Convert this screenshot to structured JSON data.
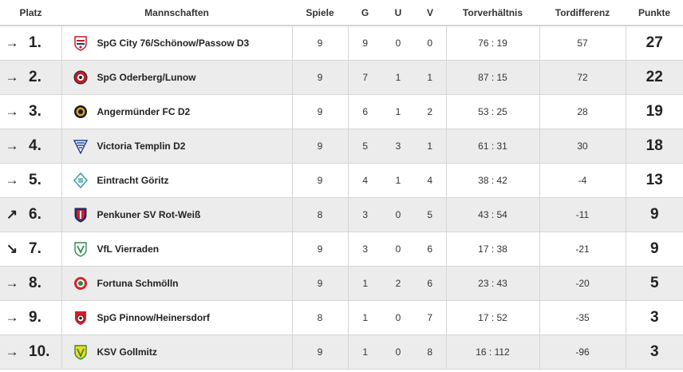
{
  "headers": {
    "place": "Platz",
    "teams": "Mannschaften",
    "games": "Spiele",
    "won": "G",
    "draw": "U",
    "lost": "V",
    "goals": "Torverhältnis",
    "diff": "Tordifferenz",
    "points": "Punkte"
  },
  "rows": [
    {
      "trend": "→",
      "rank": "1.",
      "team": "SpG City 76/Schönow/Passow D3",
      "crest": "shield-crest-red-white",
      "games": "9",
      "won": "9",
      "draw": "0",
      "lost": "0",
      "goals": "76 : 19",
      "diff": "57",
      "points": "27"
    },
    {
      "trend": "→",
      "rank": "2.",
      "team": "SpG Oderberg/Lunow",
      "crest": "round-crest-red-black",
      "games": "9",
      "won": "7",
      "draw": "1",
      "lost": "1",
      "goals": "87 : 15",
      "diff": "72",
      "points": "22"
    },
    {
      "trend": "→",
      "rank": "3.",
      "team": "Angermünder FC D2",
      "crest": "round-crest-black-gold",
      "games": "9",
      "won": "6",
      "draw": "1",
      "lost": "2",
      "goals": "53 : 25",
      "diff": "28",
      "points": "19"
    },
    {
      "trend": "→",
      "rank": "4.",
      "team": "Victoria Templin D2",
      "crest": "triangle-crest-blue-white",
      "games": "9",
      "won": "5",
      "draw": "3",
      "lost": "1",
      "goals": "61 : 31",
      "diff": "30",
      "points": "18"
    },
    {
      "trend": "→",
      "rank": "5.",
      "team": "Eintracht Göritz",
      "crest": "diamond-crest-teal",
      "games": "9",
      "won": "4",
      "draw": "1",
      "lost": "4",
      "goals": "38 : 42",
      "diff": "-4",
      "points": "13"
    },
    {
      "trend": "↗",
      "rank": "6.",
      "team": "Penkuner SV Rot-Weiß",
      "crest": "shield-crest-red-navy",
      "games": "8",
      "won": "3",
      "draw": "0",
      "lost": "5",
      "goals": "43 : 54",
      "diff": "-11",
      "points": "9"
    },
    {
      "trend": "↘",
      "rank": "7.",
      "team": "VfL Vierraden",
      "crest": "shield-crest-green-white",
      "games": "9",
      "won": "3",
      "draw": "0",
      "lost": "6",
      "goals": "17 : 38",
      "diff": "-21",
      "points": "9"
    },
    {
      "trend": "→",
      "rank": "8.",
      "team": "Fortuna Schmölln",
      "crest": "round-crest-red-green",
      "games": "9",
      "won": "1",
      "draw": "2",
      "lost": "6",
      "goals": "23 : 43",
      "diff": "-20",
      "points": "5"
    },
    {
      "trend": "→",
      "rank": "9.",
      "team": "SpG Pinnow/Heinersdorf",
      "crest": "shield-crest-red-ball",
      "games": "8",
      "won": "1",
      "draw": "0",
      "lost": "7",
      "goals": "17 : 52",
      "diff": "-35",
      "points": "3"
    },
    {
      "trend": "→",
      "rank": "10.",
      "team": "KSV Gollmitz",
      "crest": "shield-crest-yellow-green",
      "games": "9",
      "won": "1",
      "draw": "0",
      "lost": "8",
      "goals": "16 : 112",
      "diff": "-96",
      "points": "3"
    }
  ]
}
